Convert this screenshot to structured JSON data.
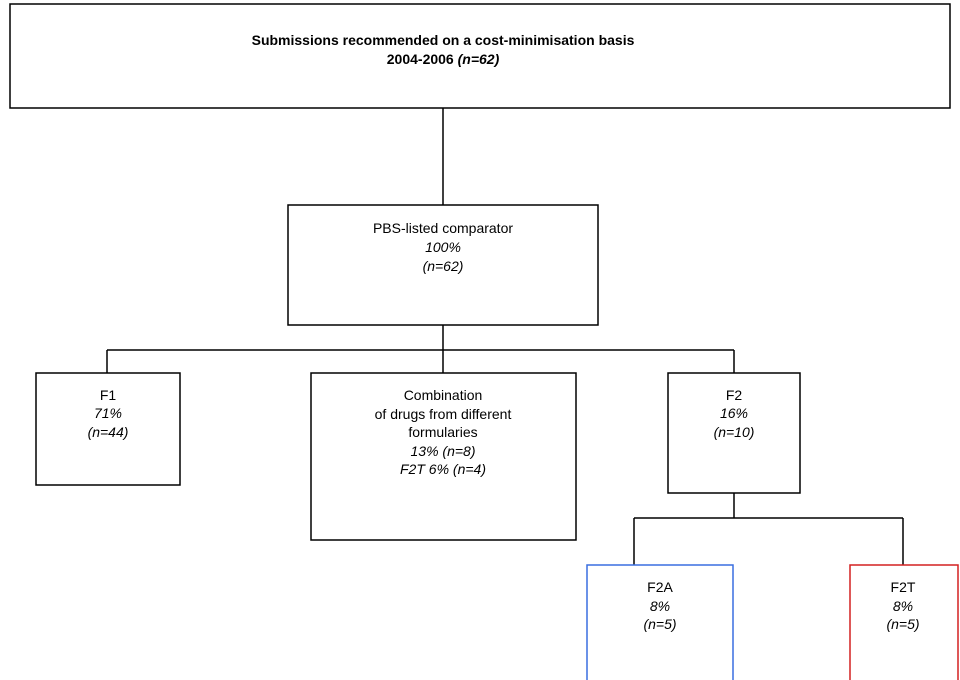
{
  "title": {
    "line1": "Submissions recommended on a cost-minimisation basis",
    "years": "2004-2006",
    "count": "(n=62)"
  },
  "nodes": [
    {
      "label": "PBS-listed comparator",
      "percent": "100%",
      "count": "(n=62)"
    },
    {
      "label": "F1",
      "percent": "71%",
      "count": "(n=44)"
    },
    {
      "lines": [
        "Combination",
        "of drugs from different",
        "formularies"
      ],
      "detail": [
        "13% (n=8)",
        "F2T 6% (n=4)"
      ]
    },
    {
      "label": "F2",
      "percent": "16%",
      "count": "(n=10)"
    },
    {
      "label": "F2A",
      "percent": "8%",
      "count": "(n=5)"
    },
    {
      "label": "F2T",
      "percent": "8%",
      "count": "(n=5)"
    }
  ]
}
